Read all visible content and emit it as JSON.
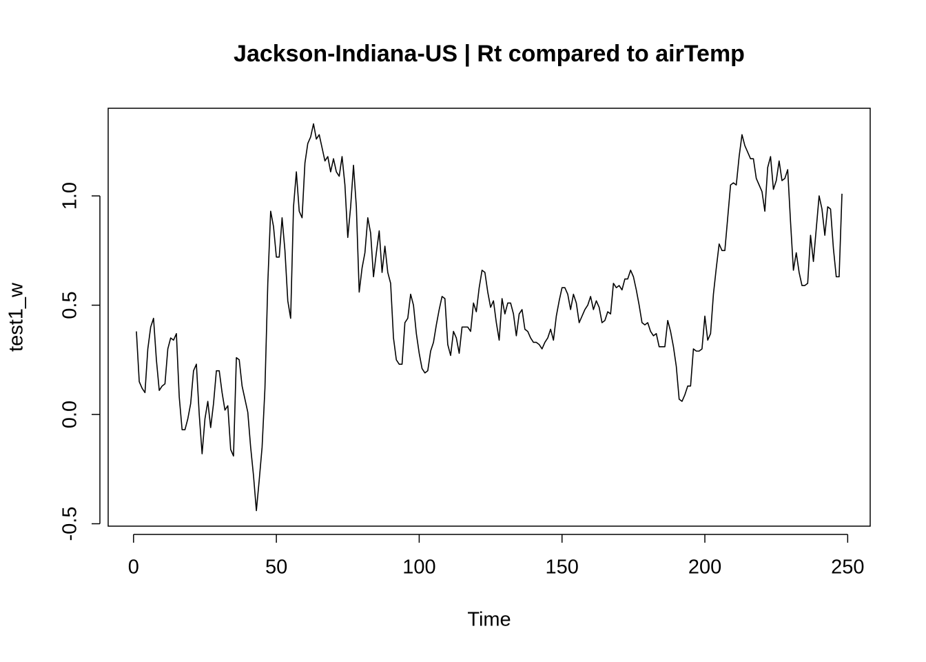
{
  "chart_data": {
    "type": "line",
    "title": "Jackson-Indiana-US | Rt compared to airTemp",
    "x_label": "Time",
    "y_label": "test1_w",
    "x": [
      1,
      2,
      3,
      4,
      5,
      6,
      7,
      8,
      9,
      10,
      11,
      12,
      13,
      14,
      15,
      16,
      17,
      18,
      19,
      20,
      21,
      22,
      23,
      24,
      25,
      26,
      27,
      28,
      29,
      30,
      31,
      32,
      33,
      34,
      35,
      36,
      37,
      38,
      39,
      40,
      41,
      42,
      43,
      44,
      45,
      46,
      47,
      48,
      49,
      50,
      51,
      52,
      53,
      54,
      55,
      56,
      57,
      58,
      59,
      60,
      61,
      62,
      63,
      64,
      65,
      66,
      67,
      68,
      69,
      70,
      71,
      72,
      73,
      74,
      75,
      76,
      77,
      78,
      79,
      80,
      81,
      82,
      83,
      84,
      85,
      86,
      87,
      88,
      89,
      90,
      91,
      92,
      93,
      94,
      95,
      96,
      97,
      98,
      99,
      100,
      101,
      102,
      103,
      104,
      105,
      106,
      107,
      108,
      109,
      110,
      111,
      112,
      113,
      114,
      115,
      116,
      117,
      118,
      119,
      120,
      121,
      122,
      123,
      124,
      125,
      126,
      127,
      128,
      129,
      130,
      131,
      132,
      133,
      134,
      135,
      136,
      137,
      138,
      139,
      140,
      141,
      142,
      143,
      144,
      145,
      146,
      147,
      148,
      149,
      150,
      151,
      152,
      153,
      154,
      155,
      156,
      157,
      158,
      159,
      160,
      161,
      162,
      163,
      164,
      165,
      166,
      167,
      168,
      169,
      170,
      171,
      172,
      173,
      174,
      175,
      176,
      177,
      178,
      179,
      180,
      181,
      182,
      183,
      184,
      185,
      186,
      187,
      188,
      189,
      190,
      191,
      192,
      193,
      194,
      195,
      196,
      197,
      198,
      199,
      200,
      201,
      202,
      203,
      204,
      205,
      206,
      207,
      208,
      209,
      210,
      211,
      212,
      213,
      214,
      215,
      216,
      217,
      218,
      219,
      220,
      221,
      222,
      223,
      224,
      225,
      226,
      227,
      228,
      229,
      230,
      231,
      232,
      233,
      234,
      235,
      236,
      237,
      238,
      239,
      240,
      241,
      242,
      243,
      244,
      245,
      246,
      247,
      248
    ],
    "values": [
      0.38,
      0.15,
      0.12,
      0.1,
      0.3,
      0.4,
      0.44,
      0.25,
      0.11,
      0.13,
      0.14,
      0.3,
      0.35,
      0.34,
      0.37,
      0.08,
      -0.07,
      -0.07,
      -0.02,
      0.05,
      0.2,
      0.23,
      0.0,
      -0.18,
      -0.02,
      0.06,
      -0.06,
      0.05,
      0.2,
      0.2,
      0.1,
      0.02,
      0.04,
      -0.16,
      -0.19,
      0.26,
      0.25,
      0.13,
      0.07,
      0.01,
      -0.15,
      -0.28,
      -0.44,
      -0.3,
      -0.15,
      0.12,
      0.6,
      0.93,
      0.86,
      0.72,
      0.72,
      0.9,
      0.75,
      0.52,
      0.44,
      0.95,
      1.11,
      0.93,
      0.9,
      1.15,
      1.24,
      1.27,
      1.33,
      1.26,
      1.28,
      1.22,
      1.16,
      1.18,
      1.11,
      1.17,
      1.11,
      1.09,
      1.18,
      1.05,
      0.81,
      0.95,
      1.14,
      0.95,
      0.56,
      0.67,
      0.74,
      0.9,
      0.83,
      0.63,
      0.74,
      0.84,
      0.65,
      0.77,
      0.65,
      0.6,
      0.35,
      0.25,
      0.23,
      0.23,
      0.42,
      0.44,
      0.55,
      0.5,
      0.37,
      0.28,
      0.21,
      0.19,
      0.2,
      0.29,
      0.33,
      0.41,
      0.48,
      0.54,
      0.53,
      0.32,
      0.27,
      0.38,
      0.35,
      0.28,
      0.4,
      0.4,
      0.4,
      0.38,
      0.51,
      0.47,
      0.58,
      0.66,
      0.65,
      0.56,
      0.49,
      0.52,
      0.42,
      0.34,
      0.53,
      0.46,
      0.51,
      0.51,
      0.46,
      0.36,
      0.46,
      0.48,
      0.39,
      0.38,
      0.35,
      0.33,
      0.33,
      0.32,
      0.3,
      0.33,
      0.35,
      0.39,
      0.34,
      0.45,
      0.52,
      0.58,
      0.58,
      0.55,
      0.48,
      0.55,
      0.51,
      0.42,
      0.45,
      0.48,
      0.5,
      0.54,
      0.48,
      0.52,
      0.49,
      0.42,
      0.43,
      0.47,
      0.46,
      0.6,
      0.58,
      0.59,
      0.57,
      0.62,
      0.62,
      0.66,
      0.63,
      0.57,
      0.5,
      0.42,
      0.41,
      0.42,
      0.38,
      0.36,
      0.37,
      0.31,
      0.31,
      0.31,
      0.43,
      0.38,
      0.31,
      0.22,
      0.07,
      0.06,
      0.09,
      0.13,
      0.13,
      0.3,
      0.29,
      0.29,
      0.3,
      0.45,
      0.34,
      0.37,
      0.55,
      0.67,
      0.78,
      0.75,
      0.75,
      0.9,
      1.05,
      1.06,
      1.05,
      1.18,
      1.28,
      1.23,
      1.2,
      1.17,
      1.17,
      1.08,
      1.05,
      1.02,
      0.93,
      1.13,
      1.18,
      1.03,
      1.07,
      1.16,
      1.07,
      1.08,
      1.12,
      0.88,
      0.66,
      0.74,
      0.65,
      0.59,
      0.59,
      0.6,
      0.82,
      0.7,
      0.85,
      1.0,
      0.94,
      0.82,
      0.95,
      0.94,
      0.76,
      0.63,
      0.63,
      1.01
    ],
    "color": "#000000",
    "xlim": [
      -8.88,
      257.88
    ],
    "ylim": [
      -0.511,
      1.401
    ],
    "xticks": [
      0,
      50,
      100,
      150,
      200,
      250
    ],
    "yticks": [
      -0.5,
      {
        "value": 0,
        "label": "0.0"
      },
      0.5,
      {
        "value": 1,
        "label": "1.0"
      }
    ]
  }
}
